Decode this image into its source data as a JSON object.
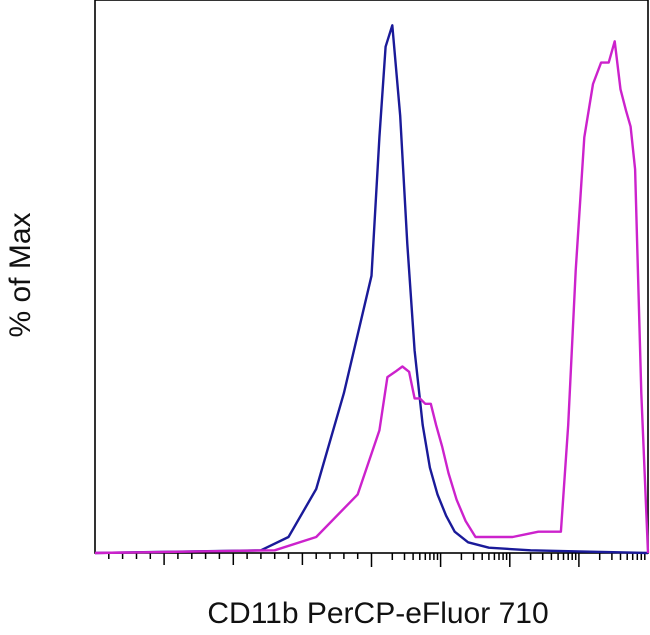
{
  "chart_data": {
    "type": "line",
    "title": "",
    "xlabel": "CD11b PerCP-eFluor 710",
    "ylabel": "% of Max",
    "x_scale": "log",
    "xlim": [
      -100,
      1000000
    ],
    "ylim": [
      0,
      100
    ],
    "grid": false,
    "legend": "none",
    "series": [
      {
        "color": "#1a1a99",
        "x": [
          -100,
          20,
          40,
          60,
          80,
          100,
          130,
          160,
          200,
          260,
          330,
          420,
          550,
          700,
          900,
          1200,
          1600,
          2500,
          5000,
          20000,
          100000,
          1000000
        ],
        "y": [
          0,
          0.5,
          3,
          12,
          30,
          52,
          78,
          95,
          99,
          82,
          58,
          38,
          24,
          16,
          11,
          7,
          4,
          2,
          1,
          0.5,
          0.3,
          0
        ]
      },
      {
        "color": "#cc22cc",
        "x": [
          -100,
          30,
          60,
          90,
          130,
          170,
          220,
          280,
          350,
          420,
          500,
          600,
          720,
          860,
          1050,
          1300,
          1700,
          2300,
          3200,
          4600,
          7000,
          11000,
          17000,
          26000,
          40000,
          55000,
          70000,
          90000,
          120000,
          160000,
          210000,
          270000,
          330000,
          400000,
          480000,
          560000,
          650000,
          800000,
          1000000
        ],
        "y": [
          0,
          0.5,
          3,
          11,
          23,
          33,
          34,
          35,
          34,
          29,
          29,
          28,
          28,
          24,
          20,
          15,
          10,
          6,
          3,
          3,
          3,
          3,
          3.5,
          4,
          4,
          4,
          24,
          53,
          78,
          88,
          92,
          92,
          96,
          87,
          83,
          80,
          72,
          30,
          0
        ]
      }
    ]
  }
}
